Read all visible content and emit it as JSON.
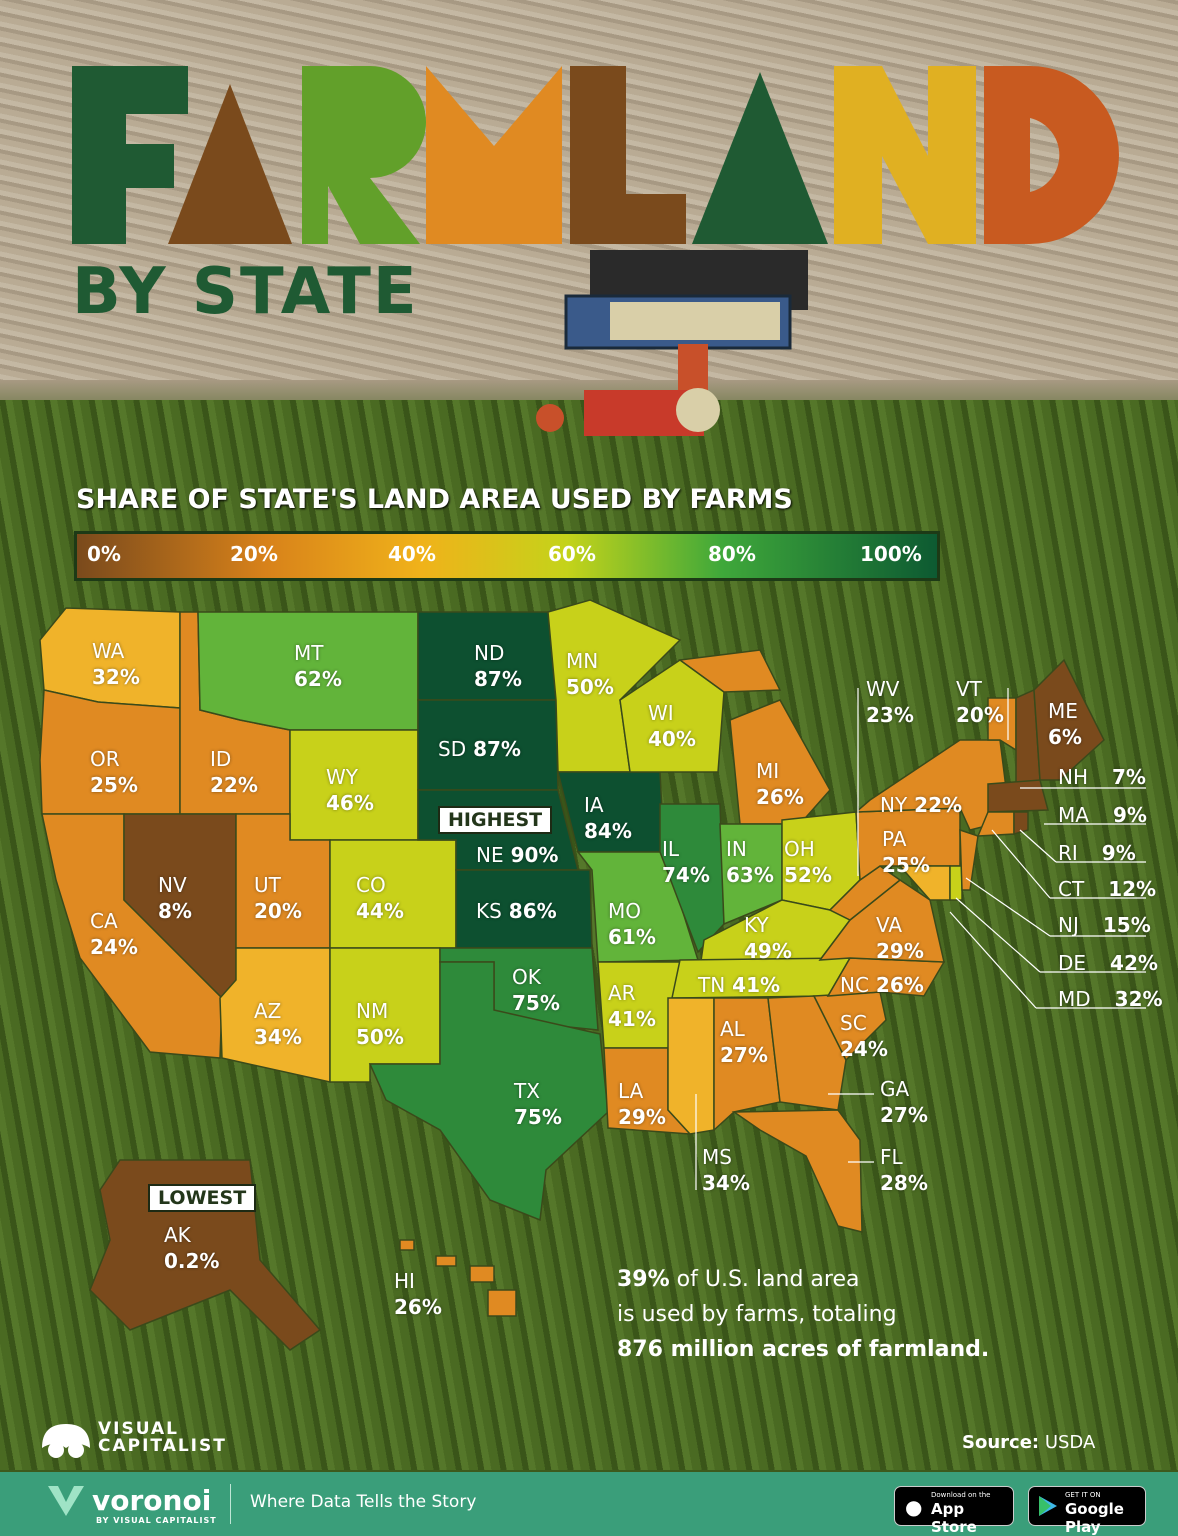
{
  "header": {
    "title_letters": [
      "F",
      "A",
      "R",
      "M",
      "L",
      "A",
      "N",
      "D"
    ],
    "subtitle": "BY STATE"
  },
  "scale": {
    "title": "SHARE OF STATE'S LAND AREA USED BY FARMS",
    "ticks": [
      "0%",
      "20%",
      "40%",
      "60%",
      "80%",
      "100%"
    ]
  },
  "colors": {
    "brown": "#7a4a1c",
    "orange": "#e08a22",
    "gold": "#f0b32a",
    "yellow_green": "#c8d11a",
    "light_green": "#62b43a",
    "green": "#2e8a3a",
    "dark_green": "#0d5030",
    "footer": "#3a9e7a"
  },
  "states": [
    {
      "abbr": "WA",
      "value": "32%",
      "share": 32
    },
    {
      "abbr": "OR",
      "value": "25%",
      "share": 25
    },
    {
      "abbr": "CA",
      "value": "24%",
      "share": 24
    },
    {
      "abbr": "ID",
      "value": "22%",
      "share": 22
    },
    {
      "abbr": "NV",
      "value": "8%",
      "share": 8
    },
    {
      "abbr": "MT",
      "value": "62%",
      "share": 62
    },
    {
      "abbr": "WY",
      "value": "46%",
      "share": 46
    },
    {
      "abbr": "UT",
      "value": "20%",
      "share": 20
    },
    {
      "abbr": "AZ",
      "value": "34%",
      "share": 34
    },
    {
      "abbr": "CO",
      "value": "44%",
      "share": 44
    },
    {
      "abbr": "NM",
      "value": "50%",
      "share": 50
    },
    {
      "abbr": "ND",
      "value": "87%",
      "share": 87
    },
    {
      "abbr": "SD",
      "value": "87%",
      "share": 87
    },
    {
      "abbr": "NE",
      "value": "90%",
      "share": 90
    },
    {
      "abbr": "KS",
      "value": "86%",
      "share": 86
    },
    {
      "abbr": "OK",
      "value": "75%",
      "share": 75
    },
    {
      "abbr": "TX",
      "value": "75%",
      "share": 75
    },
    {
      "abbr": "MN",
      "value": "50%",
      "share": 50
    },
    {
      "abbr": "IA",
      "value": "84%",
      "share": 84
    },
    {
      "abbr": "MO",
      "value": "61%",
      "share": 61
    },
    {
      "abbr": "AR",
      "value": "41%",
      "share": 41
    },
    {
      "abbr": "LA",
      "value": "29%",
      "share": 29
    },
    {
      "abbr": "WI",
      "value": "40%",
      "share": 40
    },
    {
      "abbr": "IL",
      "value": "74%",
      "share": 74
    },
    {
      "abbr": "MI",
      "value": "26%",
      "share": 26
    },
    {
      "abbr": "IN",
      "value": "63%",
      "share": 63
    },
    {
      "abbr": "OH",
      "value": "52%",
      "share": 52
    },
    {
      "abbr": "KY",
      "value": "49%",
      "share": 49
    },
    {
      "abbr": "TN",
      "value": "41%",
      "share": 41
    },
    {
      "abbr": "MS",
      "value": "34%",
      "share": 34
    },
    {
      "abbr": "AL",
      "value": "27%",
      "share": 27
    },
    {
      "abbr": "GA",
      "value": "27%",
      "share": 27
    },
    {
      "abbr": "FL",
      "value": "28%",
      "share": 28
    },
    {
      "abbr": "SC",
      "value": "24%",
      "share": 24
    },
    {
      "abbr": "NC",
      "value": "26%",
      "share": 26
    },
    {
      "abbr": "VA",
      "value": "29%",
      "share": 29
    },
    {
      "abbr": "WV",
      "value": "23%",
      "share": 23
    },
    {
      "abbr": "PA",
      "value": "25%",
      "share": 25
    },
    {
      "abbr": "NY",
      "value": "22%",
      "share": 22
    },
    {
      "abbr": "VT",
      "value": "20%",
      "share": 20
    },
    {
      "abbr": "ME",
      "value": "6%",
      "share": 6
    },
    {
      "abbr": "NH",
      "value": "7%",
      "share": 7
    },
    {
      "abbr": "MA",
      "value": "9%",
      "share": 9
    },
    {
      "abbr": "RI",
      "value": "9%",
      "share": 9
    },
    {
      "abbr": "CT",
      "value": "12%",
      "share": 12
    },
    {
      "abbr": "NJ",
      "value": "15%",
      "share": 15
    },
    {
      "abbr": "DE",
      "value": "42%",
      "share": 42
    },
    {
      "abbr": "MD",
      "value": "32%",
      "share": 32
    },
    {
      "abbr": "AK",
      "value": "0.2%",
      "share": 0.2
    },
    {
      "abbr": "HI",
      "value": "26%",
      "share": 26
    }
  ],
  "tags": {
    "highest": "HIGHEST",
    "lowest": "LOWEST"
  },
  "summary": {
    "pct": "39%",
    "line1_rest": " of U.S. land area",
    "line2": "is used by farms, totaling",
    "line3": "876 million acres of farmland."
  },
  "brand": {
    "line1": "VISUAL",
    "line2": "CAPITALIST"
  },
  "source": {
    "label": "Source:",
    "value": " USDA"
  },
  "footer": {
    "logo": "voronoi",
    "logo_sub": "BY VISUAL CAPITALIST",
    "tagline": "Where Data Tells the Story",
    "appstore_small": "Download on the",
    "appstore_big": "App Store",
    "play_small": "GET IT ON",
    "play_big": "Google Play"
  }
}
